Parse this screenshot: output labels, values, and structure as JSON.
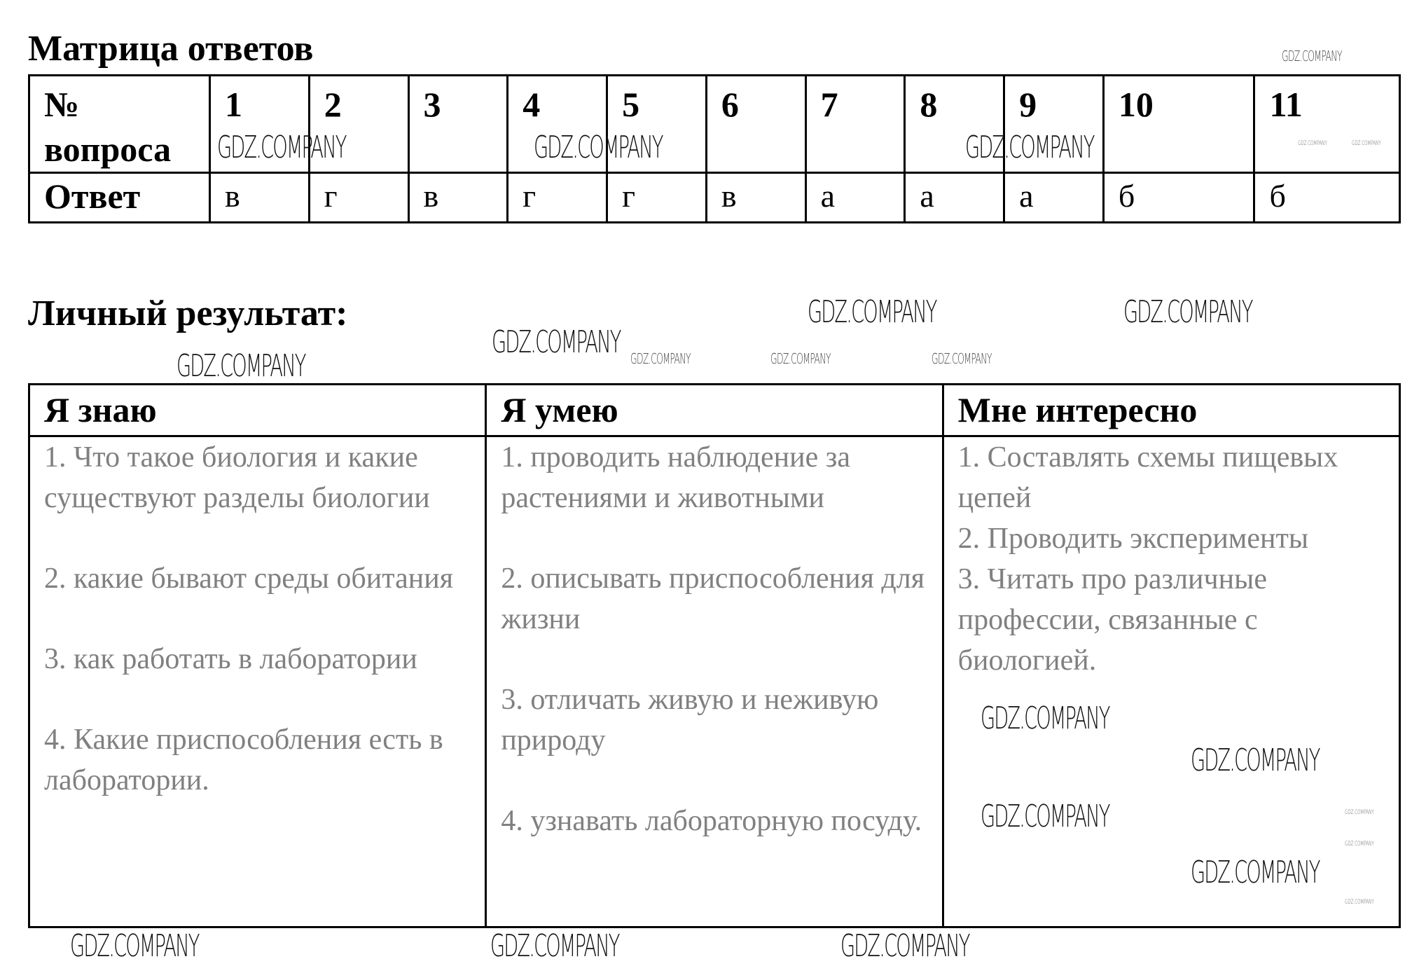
{
  "matrix": {
    "title": "Матрица ответов",
    "question_label": "№ вопроса",
    "answer_label": "Ответ",
    "questions": [
      "1",
      "2",
      "3",
      "4",
      "5",
      "6",
      "7",
      "8",
      "9",
      "10",
      "11"
    ],
    "answers": [
      "в",
      "г",
      "в",
      "г",
      "г",
      "в",
      "а",
      "а",
      "а",
      "б",
      "б"
    ]
  },
  "result": {
    "title": "Личный результат:",
    "columns": [
      {
        "header": "Я знаю",
        "items": [
          "1. Что такое биология и какие существуют разделы биологии",
          "2. какие бывают среды обитания",
          "3. как работать в лаборатории",
          "4. Какие приспособления есть в лаборатории."
        ]
      },
      {
        "header": "Я умею",
        "items": [
          "1. проводить наблюдение за растениями и животными",
          "2. описывать приспособления для жизни",
          "3. отличать живую и неживую природу",
          "4. узнавать лабораторную посуду."
        ]
      },
      {
        "header": "Мне интересно",
        "items": [
          "1. Составлять схемы пищевых цепей",
          "2. Проводить эксперименты",
          "3. Читать про различные профессии, связанные с биологией."
        ]
      }
    ]
  },
  "watermark": "GDZ.COMPANY"
}
